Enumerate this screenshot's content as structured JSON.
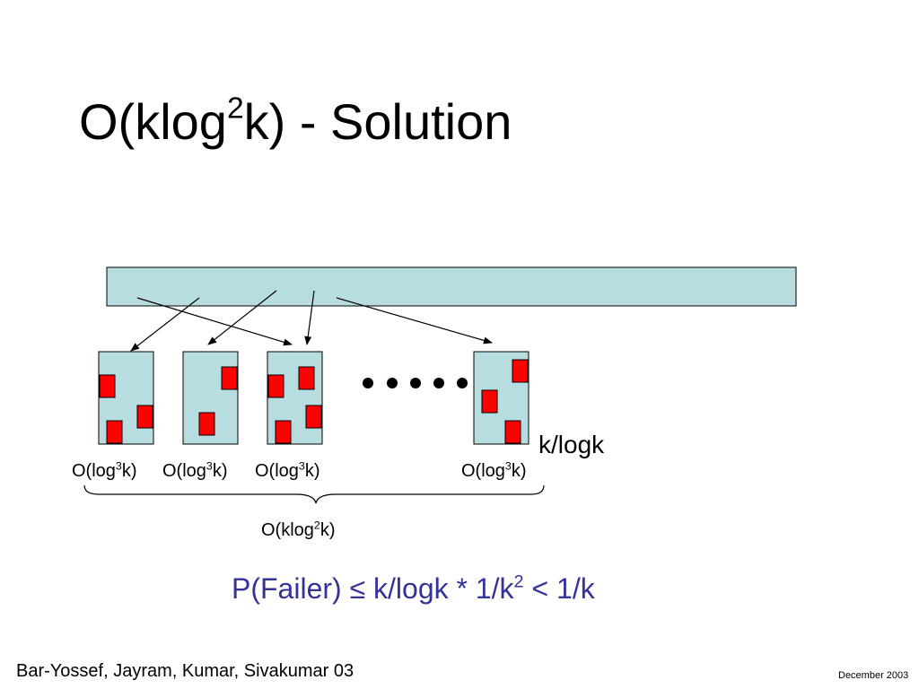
{
  "slide": {
    "title": {
      "prefix": "O(klog",
      "sup": "2",
      "suffix": "k) - Solution"
    },
    "bucket_label": {
      "prefix": "O(log",
      "sup": "3",
      "suffix": "k)"
    },
    "bucket_count_label": "k/logk",
    "total_label": {
      "prefix": "O(klog",
      "sup": "2",
      "suffix": "k)"
    },
    "probability": {
      "prefix": "P(Failer) ≤ k/logk * 1/k",
      "sup": "2",
      "suffix": " < 1/k"
    },
    "footer_left": "Bar-Yossef, Jayram, Kumar, Sivakumar 03",
    "footer_right": "December 2003",
    "colors": {
      "array_fill": "#b8dde0",
      "bucket_fill": "#b8dde0",
      "item_fill": "#ff0000",
      "probability_text": "#333399"
    }
  }
}
